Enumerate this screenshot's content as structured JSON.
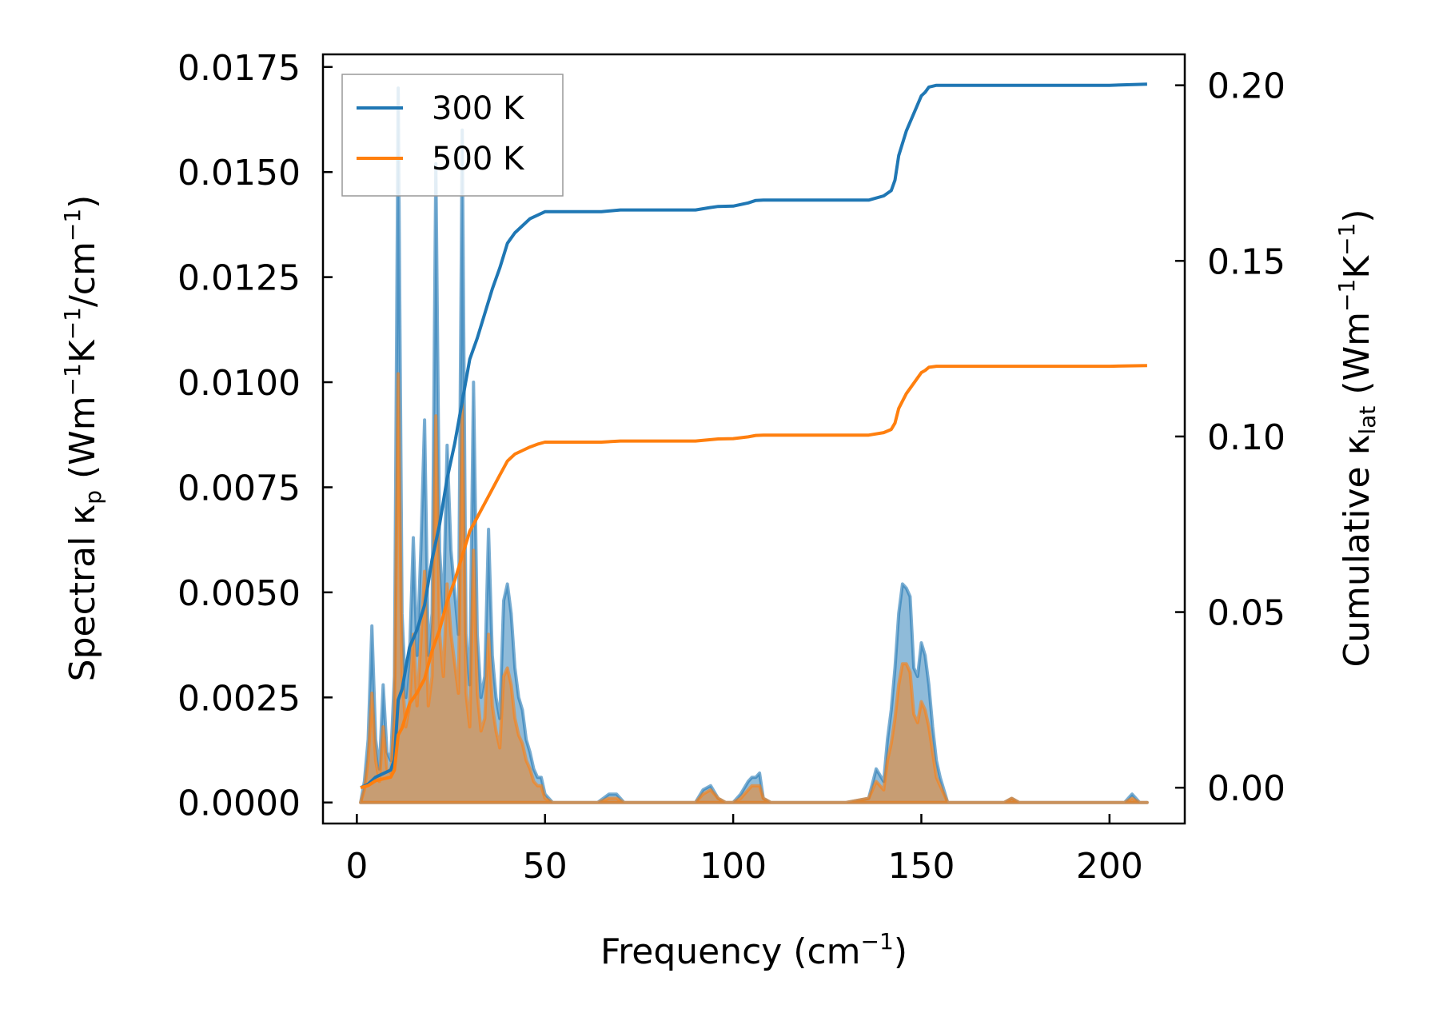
{
  "chart_data": {
    "type": "line",
    "xlabel": "Frequency (cm⁻¹)",
    "ylabel_left": "Spectral κₚ (Wm⁻¹K⁻¹/cm⁻¹)",
    "ylabel_right": "Cumulative κₗₐₜ (Wm⁻¹K⁻¹)",
    "xlim": [
      -9,
      220
    ],
    "ylim_left": [
      -0.0005,
      0.0178
    ],
    "ylim_right": [
      -0.0102,
      0.2088
    ],
    "xticks": [
      0,
      50,
      100,
      150,
      200
    ],
    "xtick_labels": [
      "0",
      "50",
      "100",
      "150",
      "200"
    ],
    "yticks_left": [
      0.0,
      0.0025,
      0.005,
      0.0075,
      0.01,
      0.0125,
      0.015,
      0.0175
    ],
    "ytick_labels_left": [
      "0.0000",
      "0.0025",
      "0.0050",
      "0.0075",
      "0.0100",
      "0.0125",
      "0.0150",
      "0.0175"
    ],
    "yticks_right": [
      0.0,
      0.05,
      0.1,
      0.15,
      0.2
    ],
    "ytick_labels_right": [
      "0.00",
      "0.05",
      "0.10",
      "0.15",
      "0.20"
    ],
    "legend": {
      "position": "top-left",
      "entries": [
        "300 K",
        "500 K"
      ]
    },
    "series": [
      {
        "name": "300 K",
        "color": "#1f77b4",
        "spectral": {
          "x": [
            1,
            2,
            3,
            4,
            5,
            6,
            7,
            8,
            9,
            10,
            11,
            12,
            13,
            14,
            15,
            16,
            17,
            18,
            19,
            20,
            21,
            22,
            23,
            24,
            25,
            26,
            27,
            28,
            29,
            30,
            31,
            32,
            33,
            34,
            35,
            36,
            37,
            38,
            39,
            40,
            41,
            42,
            43,
            44,
            45,
            46,
            47,
            48,
            49,
            50,
            52,
            55,
            60,
            64,
            67,
            69,
            71,
            75,
            80,
            85,
            90,
            92,
            94,
            96,
            98,
            100,
            102,
            104,
            105,
            106,
            107,
            108,
            110,
            120,
            130,
            136,
            138,
            140,
            141,
            142,
            143,
            144,
            145,
            146,
            147,
            148,
            149,
            150,
            151,
            152,
            153,
            154,
            155,
            157,
            160,
            165,
            170,
            172,
            174,
            176,
            180,
            190,
            200,
            204,
            206,
            208,
            210
          ],
          "y": [
            0.0,
            0.0005,
            0.0015,
            0.0042,
            0.0015,
            0.0008,
            0.0028,
            0.0012,
            0.001,
            0.003,
            0.017,
            0.0045,
            0.0025,
            0.0035,
            0.0063,
            0.0035,
            0.006,
            0.0091,
            0.0035,
            0.0045,
            0.0152,
            0.006,
            0.0045,
            0.0085,
            0.006,
            0.005,
            0.004,
            0.016,
            0.004,
            0.0028,
            0.01,
            0.004,
            0.0025,
            0.003,
            0.0065,
            0.0035,
            0.0025,
            0.002,
            0.0048,
            0.0052,
            0.0045,
            0.0032,
            0.0025,
            0.0022,
            0.0015,
            0.0012,
            0.0008,
            0.0006,
            0.0006,
            0.0002,
            0.0,
            0.0,
            0.0,
            0.0,
            0.0002,
            0.0002,
            0.0,
            0.0,
            0.0,
            0.0,
            0.0,
            0.0003,
            0.0004,
            0.0001,
            0.0,
            0.0,
            0.0002,
            0.0005,
            0.0006,
            0.0006,
            0.0007,
            0.0001,
            0.0,
            0.0,
            0.0,
            0.0001,
            0.0008,
            0.0005,
            0.0015,
            0.0022,
            0.0032,
            0.0045,
            0.0052,
            0.0051,
            0.0049,
            0.0032,
            0.003,
            0.0038,
            0.0035,
            0.0028,
            0.0018,
            0.001,
            0.0006,
            0.0,
            0.0,
            0.0,
            0.0,
            0.0,
            0.0001,
            0.0,
            0.0,
            0.0,
            0.0,
            0.0,
            0.0002,
            0.0,
            0.0
          ]
        },
        "cumulative": {
          "x": [
            1,
            3,
            5,
            7,
            9,
            10,
            11,
            12,
            14,
            16,
            18,
            20,
            22,
            24,
            26,
            28,
            30,
            32,
            34,
            36,
            38,
            40,
            42,
            44,
            46,
            48,
            50,
            55,
            60,
            65,
            70,
            80,
            90,
            94,
            96,
            100,
            104,
            106,
            108,
            120,
            130,
            136,
            140,
            142,
            143,
            144,
            146,
            148,
            150,
            151,
            152,
            154,
            160,
            180,
            200,
            210
          ],
          "y": [
            0.0,
            0.001,
            0.003,
            0.004,
            0.005,
            0.008,
            0.025,
            0.028,
            0.04,
            0.045,
            0.052,
            0.065,
            0.075,
            0.088,
            0.098,
            0.11,
            0.122,
            0.128,
            0.135,
            0.142,
            0.148,
            0.155,
            0.158,
            0.16,
            0.162,
            0.163,
            0.164,
            0.164,
            0.164,
            0.164,
            0.1645,
            0.1645,
            0.1645,
            0.1652,
            0.1655,
            0.1656,
            0.1665,
            0.1672,
            0.1673,
            0.1673,
            0.1673,
            0.1673,
            0.1685,
            0.17,
            0.173,
            0.18,
            0.187,
            0.192,
            0.197,
            0.198,
            0.1995,
            0.2,
            0.2,
            0.2,
            0.2,
            0.2003
          ]
        }
      },
      {
        "name": "500 K",
        "color": "#ff7f0e",
        "spectral": {
          "x": [
            1,
            2,
            3,
            4,
            5,
            6,
            7,
            8,
            9,
            10,
            11,
            12,
            13,
            14,
            15,
            16,
            17,
            18,
            19,
            20,
            21,
            22,
            23,
            24,
            25,
            26,
            27,
            28,
            29,
            30,
            31,
            32,
            33,
            34,
            35,
            36,
            37,
            38,
            39,
            40,
            41,
            42,
            43,
            44,
            45,
            46,
            47,
            48,
            49,
            50,
            52,
            55,
            60,
            64,
            67,
            69,
            71,
            75,
            80,
            85,
            90,
            92,
            94,
            96,
            98,
            100,
            102,
            104,
            105,
            106,
            107,
            108,
            110,
            120,
            130,
            136,
            138,
            140,
            141,
            142,
            143,
            144,
            145,
            146,
            147,
            148,
            149,
            150,
            151,
            152,
            153,
            154,
            155,
            157,
            160,
            165,
            170,
            172,
            174,
            176,
            180,
            190,
            200,
            204,
            206,
            208,
            210
          ],
          "y": [
            0.0,
            0.0003,
            0.001,
            0.0026,
            0.001,
            0.0005,
            0.0018,
            0.0008,
            0.0007,
            0.002,
            0.0102,
            0.003,
            0.0018,
            0.0023,
            0.004,
            0.0023,
            0.0038,
            0.0055,
            0.0023,
            0.003,
            0.0092,
            0.004,
            0.003,
            0.0052,
            0.004,
            0.0033,
            0.0026,
            0.0095,
            0.0026,
            0.0018,
            0.006,
            0.0026,
            0.0017,
            0.002,
            0.004,
            0.0023,
            0.0017,
            0.0013,
            0.003,
            0.0032,
            0.0028,
            0.002,
            0.0016,
            0.0014,
            0.001,
            0.0008,
            0.0005,
            0.0004,
            0.0004,
            0.0001,
            0.0,
            0.0,
            0.0,
            0.0,
            0.0001,
            0.0001,
            0.0,
            0.0,
            0.0,
            0.0,
            0.0,
            0.0002,
            0.0003,
            0.0001,
            0.0,
            0.0,
            0.0001,
            0.0003,
            0.0004,
            0.0004,
            0.0004,
            0.0001,
            0.0,
            0.0,
            0.0,
            0.0001,
            0.0005,
            0.0003,
            0.001,
            0.0014,
            0.002,
            0.0028,
            0.0033,
            0.0033,
            0.0031,
            0.0021,
            0.0019,
            0.0024,
            0.0022,
            0.0018,
            0.0012,
            0.0006,
            0.0004,
            0.0,
            0.0,
            0.0,
            0.0,
            0.0,
            0.0001,
            0.0,
            0.0,
            0.0,
            0.0,
            0.0,
            0.0001,
            0.0,
            0.0
          ]
        },
        "cumulative": {
          "x": [
            1,
            3,
            5,
            7,
            9,
            10,
            11,
            12,
            14,
            16,
            18,
            20,
            22,
            24,
            26,
            28,
            30,
            32,
            34,
            36,
            38,
            40,
            42,
            44,
            46,
            48,
            50,
            55,
            60,
            65,
            70,
            80,
            90,
            94,
            96,
            100,
            104,
            106,
            108,
            120,
            130,
            136,
            140,
            142,
            143,
            144,
            146,
            148,
            150,
            151,
            152,
            154,
            160,
            180,
            200,
            210
          ],
          "y": [
            0.0,
            0.0006,
            0.002,
            0.0025,
            0.003,
            0.005,
            0.015,
            0.017,
            0.024,
            0.027,
            0.031,
            0.039,
            0.045,
            0.053,
            0.059,
            0.066,
            0.073,
            0.077,
            0.081,
            0.085,
            0.089,
            0.093,
            0.095,
            0.096,
            0.097,
            0.0978,
            0.0984,
            0.0984,
            0.0984,
            0.0984,
            0.0987,
            0.0987,
            0.0987,
            0.0991,
            0.0993,
            0.0994,
            0.0999,
            0.1003,
            0.1004,
            0.1004,
            0.1004,
            0.1004,
            0.1011,
            0.102,
            0.1038,
            0.108,
            0.1122,
            0.1152,
            0.1182,
            0.1188,
            0.1197,
            0.12,
            0.12,
            0.12,
            0.12,
            0.1202
          ]
        }
      }
    ]
  }
}
